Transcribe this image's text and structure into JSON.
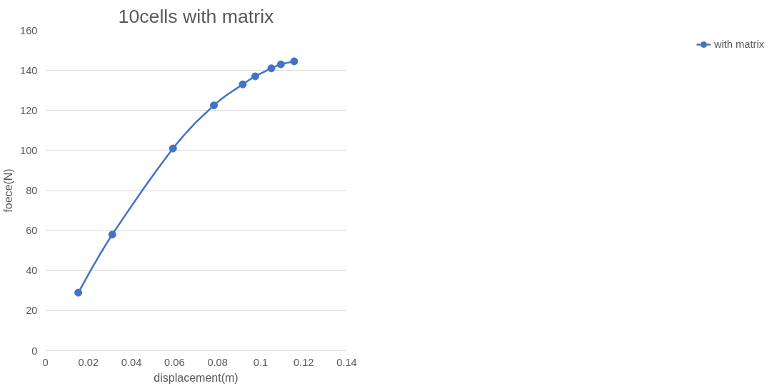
{
  "chart_data": {
    "type": "line",
    "title": "10cells with matrix",
    "xlabel": "displacement(m)",
    "ylabel": "foece(N)",
    "x": [
      0.0153,
      0.0311,
      0.0593,
      0.0783,
      0.0917,
      0.0975,
      0.105,
      0.1094,
      0.1156
    ],
    "series": [
      {
        "name": "with matrix",
        "color": "#4472c4",
        "values": [
          29,
          58,
          101,
          122.5,
          133,
          137,
          141,
          143,
          144.5
        ]
      }
    ],
    "xlim": [
      0,
      0.14
    ],
    "xticks": [
      0,
      0.02,
      0.04,
      0.06,
      0.08,
      0.1,
      0.12,
      0.14
    ],
    "ylim": [
      0,
      160
    ],
    "yticks": [
      0,
      20,
      40,
      60,
      80,
      100,
      120,
      140,
      160
    ],
    "grid": "y",
    "legend": "right",
    "marker": "circle",
    "line_style": "solid"
  }
}
